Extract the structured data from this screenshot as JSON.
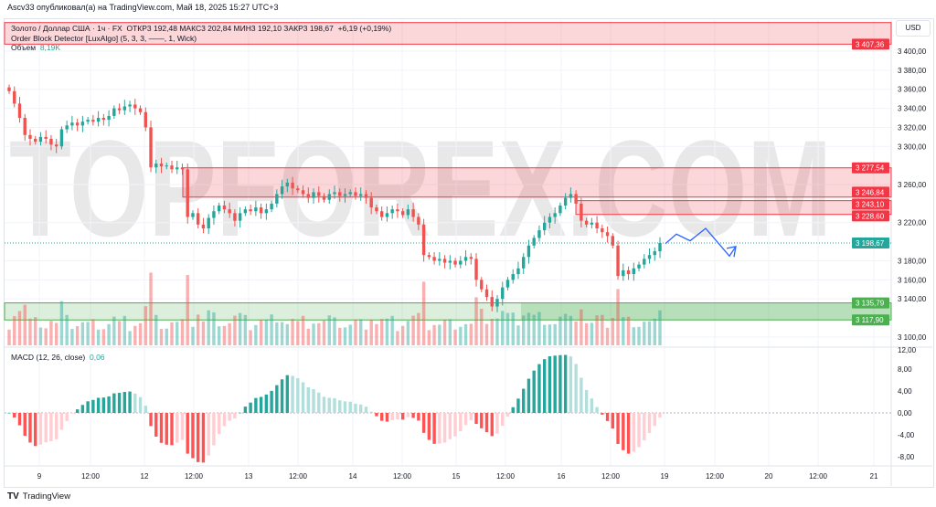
{
  "publisher_line": "Ascv33 опубликовал(а) на TradingView.com, Май 18, 2025 15:27 UTC+3",
  "legend": {
    "symbol": "Золото / Доллар США · 1ч · FX",
    "ohlc": "ОТКР3 192,48  МАКС3 202,84  МИН3 192,10  ЗАКР3 198,67",
    "change": "+6,19 (+0,19%)",
    "indicator": "Order Block Detector [LuxAlgo] (5, 3, 3, ——, 1, Wick)",
    "volume_label": "Объем",
    "volume_value": "8,19K",
    "macd_label": "MACD (12, 26, close)",
    "macd_value": "0,06"
  },
  "currency": "USD",
  "watermark": "TOPFOREX.COM",
  "footer_brand": "TradingView",
  "colors": {
    "up": "#26a69a",
    "down": "#ef5350",
    "bear_zone": "#f23645",
    "bull_zone": "#4caf50",
    "projection": "#2962ff",
    "hist_up": "#26a69a",
    "hist_up_fade": "#b2dfdb",
    "hist_dn": "#ff5252",
    "hist_dn_fade": "#ffcdd2"
  },
  "chart_data": {
    "type": "candlestick",
    "interval": "1h",
    "price_axis": {
      "ticks": [
        "3 400,00",
        "3 380,00",
        "3 360,00",
        "3 340,00",
        "3 320,00",
        "3 300,00",
        "3 260,00",
        "3 220,00",
        "3 180,00",
        "3 160,00",
        "3 140,00",
        "3 100,00"
      ],
      "tick_values": [
        3400,
        3380,
        3360,
        3340,
        3320,
        3300,
        3260,
        3220,
        3180,
        3160,
        3140,
        3100
      ],
      "range": [
        3090,
        3430
      ]
    },
    "time_axis": {
      "ticks": [
        "9",
        "12:00",
        "12",
        "12:00",
        "13",
        "12:00",
        "14",
        "12:00",
        "15",
        "12:00",
        "16",
        "12:00",
        "19",
        "12:00",
        "20",
        "12:00",
        "21"
      ]
    },
    "close": [
      3358,
      3345,
      3330,
      3312,
      3308,
      3305,
      3310,
      3308,
      3302,
      3300,
      3318,
      3322,
      3325,
      3322,
      3326,
      3328,
      3326,
      3330,
      3328,
      3332,
      3340,
      3338,
      3342,
      3344,
      3340,
      3336,
      3320,
      3278,
      3282,
      3279,
      3280,
      3276,
      3278,
      3276,
      3226,
      3230,
      3218,
      3214,
      3225,
      3232,
      3238,
      3234,
      3230,
      3222,
      3230,
      3234,
      3232,
      3236,
      3230,
      3234,
      3240,
      3250,
      3258,
      3262,
      3256,
      3254,
      3250,
      3246,
      3252,
      3248,
      3244,
      3250,
      3252,
      3248,
      3250,
      3252,
      3248,
      3250,
      3246,
      3236,
      3232,
      3226,
      3230,
      3234,
      3232,
      3228,
      3234,
      3226,
      3218,
      3186,
      3184,
      3180,
      3182,
      3178,
      3180,
      3176,
      3180,
      3184,
      3182,
      3160,
      3150,
      3142,
      3132,
      3140,
      3152,
      3160,
      3166,
      3172,
      3184,
      3196,
      3204,
      3212,
      3220,
      3226,
      3230,
      3238,
      3246,
      3250,
      3240,
      3222,
      3218,
      3220,
      3214,
      3210,
      3206,
      3196,
      3164,
      3170,
      3166,
      3172,
      3176,
      3182,
      3186,
      3190,
      3198.67
    ],
    "last_price": {
      "value": 3198.67,
      "label": "3 198,67"
    },
    "order_blocks": [
      {
        "kind": "bearish",
        "top": 3430,
        "bottom": 3407.36,
        "label": "3 407,36"
      },
      {
        "kind": "bearish",
        "top": 3277.54,
        "bottom": 3246.84,
        "labels": [
          "3 277,54",
          "3 246,84"
        ]
      },
      {
        "kind": "bearish",
        "top": 3243.1,
        "bottom": 3228.6,
        "labels": [
          "3 243,10",
          "3 228,60"
        ]
      },
      {
        "kind": "bullish",
        "top": 3135.79,
        "bottom": 3117.9,
        "labels": [
          "3 135,79",
          "3 117,90"
        ]
      }
    ],
    "projection": [
      3198,
      3208,
      3201,
      3214,
      3185,
      3195
    ],
    "macd": {
      "fast": 12,
      "slow": 26,
      "source": "close",
      "axis_ticks": [
        "12,00",
        "8,00",
        "4,00",
        "0,00",
        "-4,00",
        "-8,00"
      ],
      "tick_values": [
        12,
        8,
        4,
        0,
        -4,
        -8
      ]
    }
  }
}
